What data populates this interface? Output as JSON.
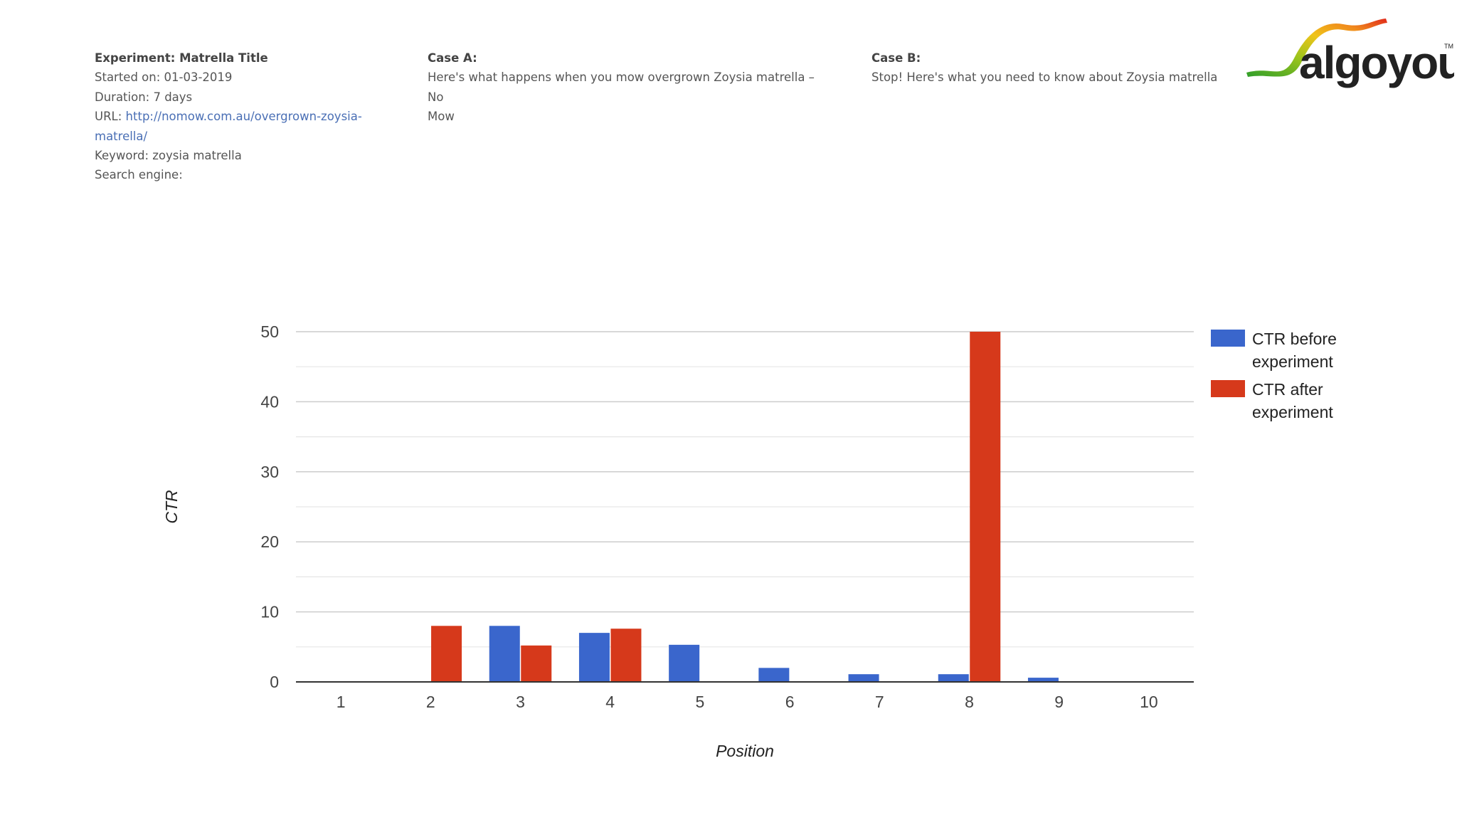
{
  "experiment": {
    "title_label": "Experiment: Matrella Title",
    "started": "Started on: 01-03-2019",
    "duration": "Duration: 7 days",
    "url_label": "URL: ",
    "url_line1": "http://nomow.com.au/overgrown-zoysia-",
    "url_line2": "matrella/",
    "keyword": "Keyword: zoysia matrella",
    "search_engine": "Search engine:"
  },
  "case_a": {
    "label": "Case A:",
    "text_line1": "Here's what happens when you mow overgrown Zoysia matrella – No",
    "text_line2": "Mow"
  },
  "case_b": {
    "label": "Case B:",
    "text": "Stop! Here's what you need to know about Zoysia matrella"
  },
  "logo": {
    "text": "algoyou",
    "tm": "TM"
  },
  "colors": {
    "before": "#3a66cc",
    "after": "#d6391b",
    "grid": "#cccccc",
    "grid_minor": "#e6e6e6",
    "axis": "#333333"
  },
  "chart_data": {
    "type": "bar",
    "title": "",
    "xlabel": "Position",
    "ylabel": "CTR",
    "categories": [
      "1",
      "2",
      "3",
      "4",
      "5",
      "6",
      "7",
      "8",
      "9",
      "10"
    ],
    "series": [
      {
        "name": "CTR before experiment",
        "legend_lines": [
          "CTR before",
          "experiment"
        ],
        "values": [
          0,
          0,
          8,
          7,
          5.3,
          2,
          1.1,
          1.1,
          0.6,
          0
        ]
      },
      {
        "name": "CTR after experiment",
        "legend_lines": [
          "CTR after",
          "experiment"
        ],
        "values": [
          0,
          8,
          5.2,
          7.6,
          0,
          0,
          0,
          50,
          0,
          0
        ]
      }
    ],
    "ylim": [
      0,
      50
    ],
    "yticks": [
      0,
      10,
      20,
      30,
      40,
      50
    ],
    "grid": true,
    "legend_position": "right"
  }
}
